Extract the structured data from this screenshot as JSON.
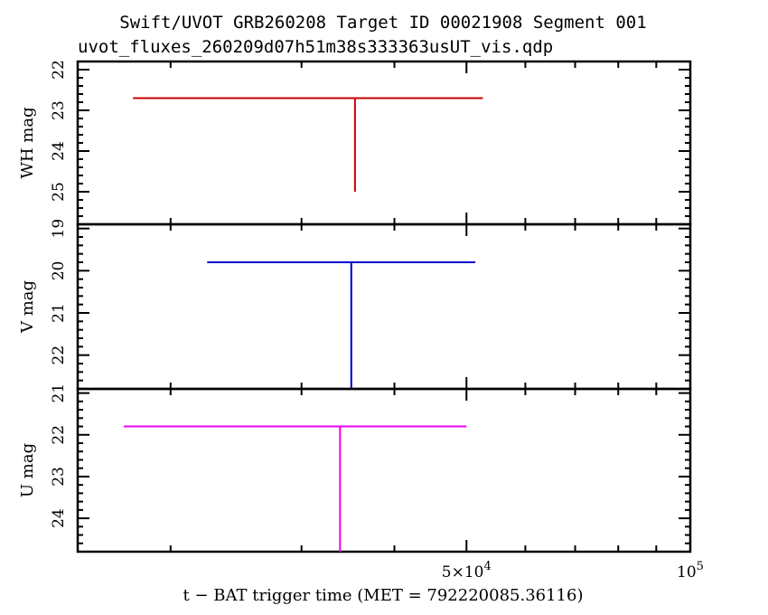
{
  "title_line1": "Swift/UVOT GRB260208 Target ID 00021908 Segment 001",
  "title_line2": "uvot_fluxes_260209d07h51m38s333363usUT_vis.qdp",
  "chart_data": [
    {
      "type": "scatter",
      "ylabel": "WH mag",
      "ylim": [
        25.8,
        21.8
      ],
      "yticks": [
        22,
        23,
        24,
        25
      ],
      "color": "#cc0000",
      "points": [
        {
          "x": 35400,
          "x_err_low": 17600,
          "x_err_high": 17200,
          "y": 22.7,
          "limit_to": 25.0,
          "upper_limit": true
        }
      ]
    },
    {
      "type": "scatter",
      "ylabel": "V mag",
      "ylim": [
        22.8,
        18.9
      ],
      "yticks": [
        19,
        20,
        21,
        22
      ],
      "color": "#0000cc",
      "points": [
        {
          "x": 35000,
          "x_err_low": 12600,
          "x_err_high": 16400,
          "y": 19.8,
          "limit_to": 22.8,
          "upper_limit": true
        }
      ]
    },
    {
      "type": "scatter",
      "ylabel": "U mag",
      "ylim": [
        24.8,
        20.9
      ],
      "yticks": [
        21,
        22,
        23,
        24
      ],
      "color": "#ee00ee",
      "points": [
        {
          "x": 33800,
          "x_err_low": 16500,
          "x_err_high": 16200,
          "y": 21.8,
          "limit_to": 24.8,
          "upper_limit": true
        }
      ]
    }
  ],
  "x_axis": {
    "label": "t − BAT trigger time (MET = 792220085.36116)",
    "scale": "log",
    "xlim": [
      15000,
      100000
    ],
    "major_ticks": [
      {
        "value": 50000,
        "mant": "5×10",
        "exp": "4"
      },
      {
        "value": 100000,
        "mant": "10",
        "exp": "5"
      }
    ],
    "minor_ticks": [
      20000,
      30000,
      40000,
      60000,
      70000,
      80000,
      90000
    ]
  }
}
